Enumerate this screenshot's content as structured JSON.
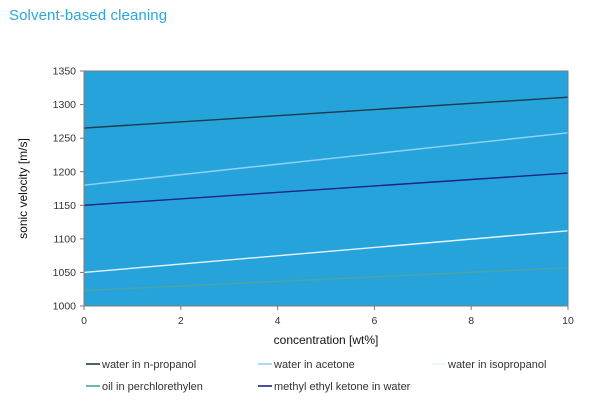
{
  "page": {
    "title": "Solvent-based cleaning"
  },
  "chart_data": {
    "type": "line",
    "xlabel": "concentration [wt%]",
    "ylabel": "sonic velocity [m/s]",
    "xlim": [
      0,
      10
    ],
    "ylim": [
      1000,
      1350
    ],
    "xticks": [
      0,
      2,
      4,
      6,
      8,
      10
    ],
    "yticks": [
      1000,
      1050,
      1100,
      1150,
      1200,
      1250,
      1300,
      1350
    ],
    "grid": false,
    "legend_position": "bottom",
    "colors": {
      "plot_background": "#27a3dc",
      "plot_border": "#7a7a7a"
    },
    "series": [
      {
        "name": "water in n-propanol",
        "color": "#1b3a4b",
        "x": [
          0,
          10
        ],
        "y": [
          1265,
          1311
        ]
      },
      {
        "name": "water in acetone",
        "color": "#8fd3f4",
        "x": [
          0,
          10
        ],
        "y": [
          1180,
          1258
        ]
      },
      {
        "name": "water in isopropanol",
        "color": "#e4f4fc",
        "x": [
          0,
          10
        ],
        "y": [
          1050,
          1112
        ]
      },
      {
        "name": "oil in perchlorethylen",
        "color": "#4aa6a6",
        "x": [
          0,
          10
        ],
        "y": [
          1023,
          1057
        ]
      },
      {
        "name": "methyl ethyl ketone in water",
        "color": "#1a237e",
        "x": [
          0,
          10
        ],
        "y": [
          1150,
          1198
        ]
      }
    ],
    "legend_order": [
      0,
      1,
      2,
      3,
      4
    ]
  }
}
